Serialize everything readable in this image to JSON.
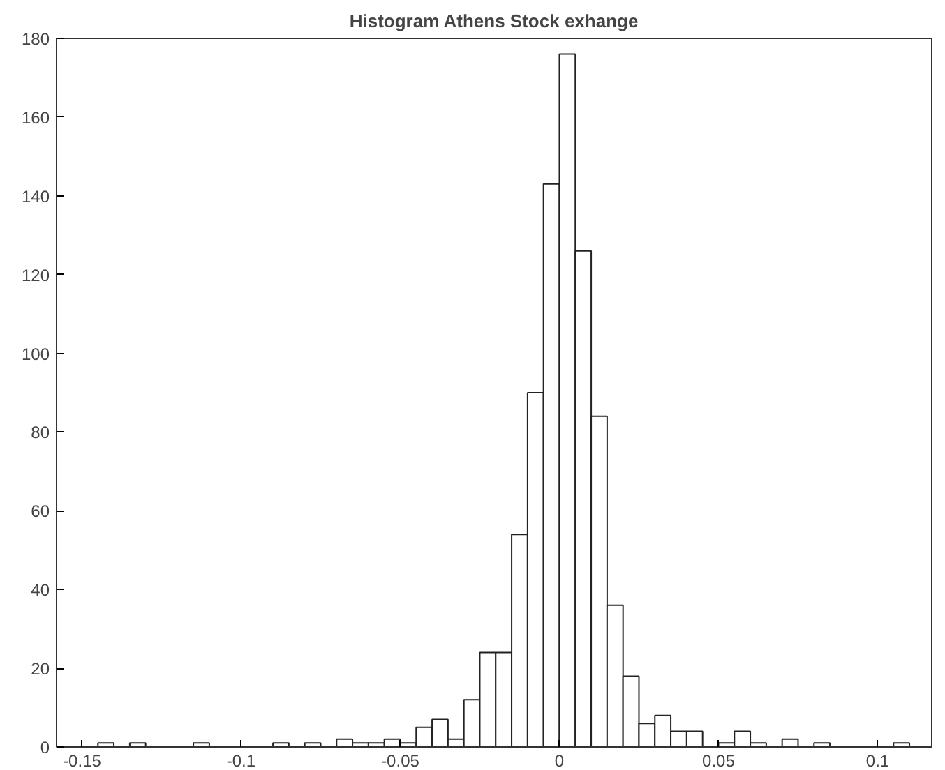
{
  "chart_data": {
    "type": "histogram",
    "title": "Histogram Athens Stock exhange",
    "bins": [
      -0.15,
      -0.145,
      -0.14,
      -0.135,
      -0.13,
      -0.125,
      -0.12,
      -0.115,
      -0.11,
      -0.105,
      -0.1,
      -0.095,
      -0.09,
      -0.085,
      -0.08,
      -0.075,
      -0.07,
      -0.065,
      -0.06,
      -0.055,
      -0.05,
      -0.045,
      -0.04,
      -0.035,
      -0.03,
      -0.025,
      -0.02,
      -0.015,
      -0.01,
      -0.005,
      0,
      0.005,
      0.01,
      0.015,
      0.02,
      0.025,
      0.03,
      0.035,
      0.04,
      0.045,
      0.05,
      0.055,
      0.06,
      0.065,
      0.07,
      0.075,
      0.08,
      0.085,
      0.09,
      0.095,
      0.1,
      0.105,
      0.11
    ],
    "values": [
      0,
      1,
      0,
      1,
      0,
      0,
      0,
      1,
      0,
      0,
      0,
      0,
      1,
      0,
      1,
      0,
      2,
      1,
      1,
      2,
      1,
      5,
      7,
      2,
      12,
      24,
      24,
      54,
      90,
      143,
      176,
      126,
      84,
      36,
      18,
      6,
      8,
      4,
      4,
      0,
      1,
      4,
      1,
      0,
      2,
      0,
      1,
      0,
      0,
      0,
      0,
      1
    ],
    "color": "#ffffff",
    "xlim": [
      -0.158,
      0.117
    ],
    "ylim": [
      0,
      180
    ],
    "xticks": [
      -0.15,
      -0.1,
      -0.05,
      0,
      0.05,
      0.1
    ],
    "yticks": [
      0,
      20,
      40,
      60,
      80,
      100,
      120,
      140,
      160,
      180
    ],
    "grid": false
  }
}
